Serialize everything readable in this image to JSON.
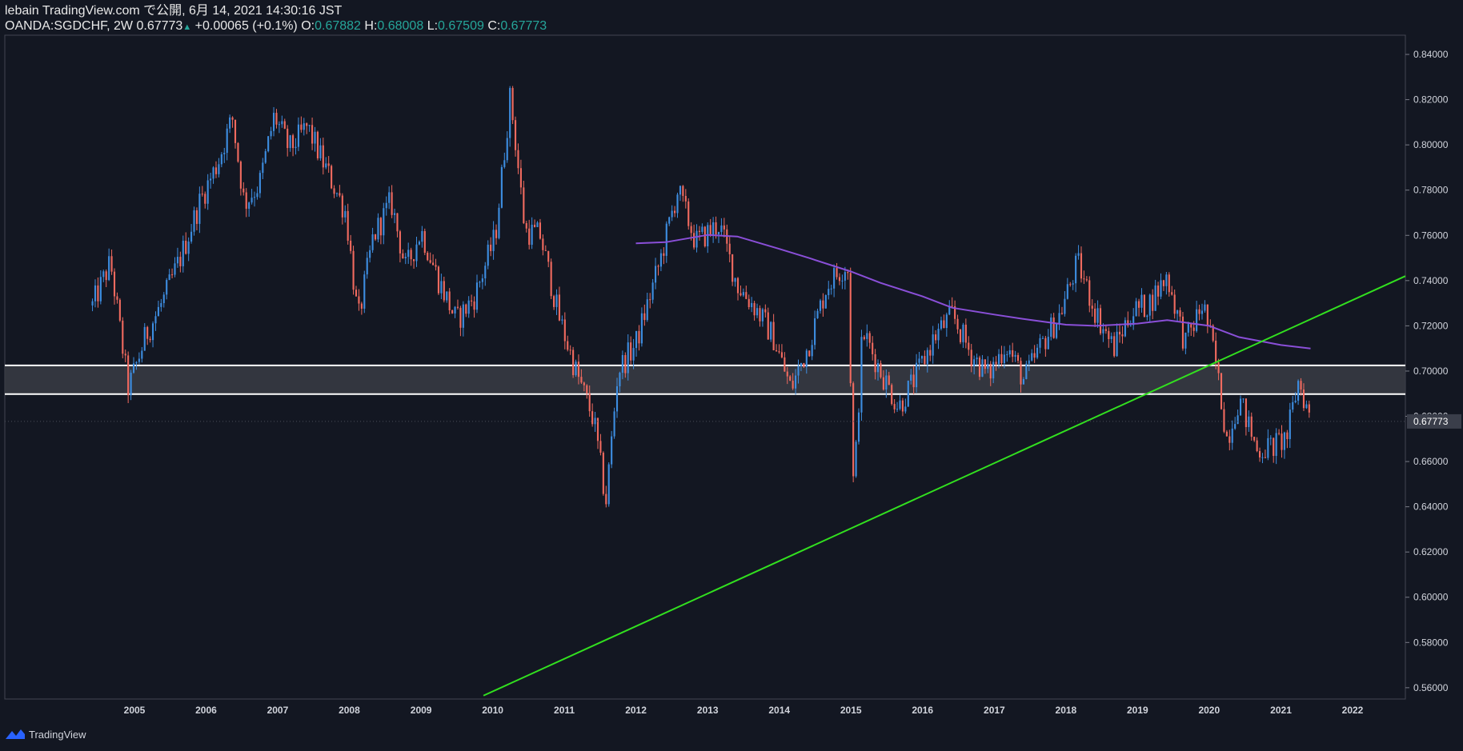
{
  "header": {
    "publish_line": "lebain TradingView.com で公開, 6月 14, 2021 14:30:16 JST",
    "symbol": "OANDA:SGDCHF, 2W",
    "last": "0.67773",
    "up_arrow": "▲",
    "change": "+0.00065 (+0.1%)",
    "o_label": "O:",
    "o_value": "0.67882",
    "h_label": "H:",
    "h_value": "0.68008",
    "l_label": "L:",
    "l_value": "0.67509",
    "c_label": "C:",
    "c_value": "0.67773"
  },
  "footer": {
    "brand": "TradingView",
    "logo_icon": "tradingview-logo-icon"
  },
  "colors": {
    "background": "#131722",
    "up": "#3d8de0",
    "down": "#f06a5f",
    "ma": "#8a4fd8",
    "trendline": "#32e01f",
    "zone_line": "#ffffff",
    "zone_fill": "#3a3c44",
    "price_label_bg": "#3a3e4a"
  },
  "chart_data": {
    "type": "candlestick",
    "x_axis": {
      "type": "date",
      "range": [
        "2004-01-01",
        "2022-12-31"
      ],
      "tick_labels": [
        "2005",
        "2006",
        "2007",
        "2008",
        "2009",
        "2010",
        "2011",
        "2012",
        "2013",
        "2014",
        "2015",
        "2016",
        "2017",
        "2018",
        "2019",
        "2020",
        "2021",
        "2022"
      ]
    },
    "y_axis": {
      "range": [
        0.555,
        0.8485
      ],
      "position": "right",
      "tick_labels": [
        "0.84000",
        "0.82000",
        "0.80000",
        "0.78000",
        "0.76000",
        "0.74000",
        "0.72000",
        "0.70000",
        "0.68000",
        "0.66000",
        "0.64000",
        "0.62000",
        "0.60000",
        "0.58000",
        "0.56000"
      ]
    },
    "last_price": {
      "value": 0.67773,
      "label": "0.67773"
    },
    "price_path": [
      [
        "2004-06-01",
        0.729
      ],
      [
        "2004-09-01",
        0.748
      ],
      [
        "2004-12-01",
        0.692
      ],
      [
        "2005-03-01",
        0.716
      ],
      [
        "2005-06-01",
        0.732
      ],
      [
        "2005-09-01",
        0.752
      ],
      [
        "2005-12-01",
        0.775
      ],
      [
        "2006-03-01",
        0.792
      ],
      [
        "2006-05-15",
        0.812
      ],
      [
        "2006-07-15",
        0.774
      ],
      [
        "2006-10-01",
        0.783
      ],
      [
        "2006-12-15",
        0.813
      ],
      [
        "2007-03-01",
        0.798
      ],
      [
        "2007-06-01",
        0.808
      ],
      [
        "2007-09-01",
        0.79
      ],
      [
        "2007-12-15",
        0.77
      ],
      [
        "2008-02-15",
        0.722
      ],
      [
        "2008-05-01",
        0.759
      ],
      [
        "2008-08-01",
        0.775
      ],
      [
        "2008-10-15",
        0.745
      ],
      [
        "2009-01-01",
        0.762
      ],
      [
        "2009-04-01",
        0.74
      ],
      [
        "2009-07-01",
        0.722
      ],
      [
        "2009-10-01",
        0.733
      ],
      [
        "2010-01-15",
        0.76
      ],
      [
        "2010-04-01",
        0.822
      ],
      [
        "2010-06-15",
        0.762
      ],
      [
        "2010-09-01",
        0.76
      ],
      [
        "2010-12-01",
        0.725
      ],
      [
        "2011-03-01",
        0.7
      ],
      [
        "2011-06-01",
        0.678
      ],
      [
        "2011-08-01",
        0.642
      ],
      [
        "2011-10-01",
        0.7
      ],
      [
        "2012-01-01",
        0.712
      ],
      [
        "2012-05-01",
        0.748
      ],
      [
        "2012-08-01",
        0.78
      ],
      [
        "2012-11-01",
        0.757
      ],
      [
        "2013-03-01",
        0.765
      ],
      [
        "2013-06-01",
        0.738
      ],
      [
        "2013-09-01",
        0.728
      ],
      [
        "2013-12-01",
        0.715
      ],
      [
        "2014-03-01",
        0.692
      ],
      [
        "2014-06-01",
        0.712
      ],
      [
        "2014-09-01",
        0.738
      ],
      [
        "2014-12-15",
        0.748
      ],
      [
        "2015-01-15",
        0.645
      ],
      [
        "2015-03-01",
        0.718
      ],
      [
        "2015-06-01",
        0.7
      ],
      [
        "2015-09-01",
        0.684
      ],
      [
        "2015-12-01",
        0.698
      ],
      [
        "2016-03-01",
        0.715
      ],
      [
        "2016-06-01",
        0.725
      ],
      [
        "2016-09-01",
        0.708
      ],
      [
        "2016-12-01",
        0.698
      ],
      [
        "2017-03-01",
        0.712
      ],
      [
        "2017-06-01",
        0.696
      ],
      [
        "2017-09-01",
        0.712
      ],
      [
        "2017-12-01",
        0.725
      ],
      [
        "2018-03-01",
        0.748
      ],
      [
        "2018-06-01",
        0.726
      ],
      [
        "2018-09-01",
        0.71
      ],
      [
        "2018-12-01",
        0.726
      ],
      [
        "2019-03-01",
        0.73
      ],
      [
        "2019-06-01",
        0.742
      ],
      [
        "2019-09-01",
        0.712
      ],
      [
        "2019-12-01",
        0.73
      ],
      [
        "2020-02-01",
        0.705
      ],
      [
        "2020-04-01",
        0.67
      ],
      [
        "2020-06-01",
        0.688
      ],
      [
        "2020-09-01",
        0.665
      ],
      [
        "2020-12-01",
        0.667
      ],
      [
        "2021-02-01",
        0.671
      ],
      [
        "2021-04-01",
        0.696
      ],
      [
        "2021-06-01",
        0.678
      ]
    ],
    "moving_average": [
      [
        "2012-01-01",
        0.7565
      ],
      [
        "2012-06-01",
        0.757
      ],
      [
        "2013-01-01",
        0.7602
      ],
      [
        "2013-06-01",
        0.7595
      ],
      [
        "2014-01-01",
        0.754
      ],
      [
        "2014-06-01",
        0.75
      ],
      [
        "2015-01-01",
        0.744
      ],
      [
        "2015-06-01",
        0.739
      ],
      [
        "2016-01-01",
        0.733
      ],
      [
        "2016-06-01",
        0.728
      ],
      [
        "2017-01-01",
        0.725
      ],
      [
        "2017-06-01",
        0.723
      ],
      [
        "2018-01-01",
        0.7205
      ],
      [
        "2018-06-01",
        0.72
      ],
      [
        "2019-01-01",
        0.721
      ],
      [
        "2019-06-01",
        0.7225
      ],
      [
        "2020-01-01",
        0.72
      ],
      [
        "2020-06-01",
        0.715
      ],
      [
        "2021-01-01",
        0.7115
      ],
      [
        "2021-06-01",
        0.71
      ]
    ],
    "zone": {
      "upper": 0.7025,
      "lower": 0.6898
    },
    "trendline": {
      "start": [
        "2009-11-15",
        0.5565
      ],
      "end": [
        "2022-12-31",
        0.742
      ]
    }
  }
}
